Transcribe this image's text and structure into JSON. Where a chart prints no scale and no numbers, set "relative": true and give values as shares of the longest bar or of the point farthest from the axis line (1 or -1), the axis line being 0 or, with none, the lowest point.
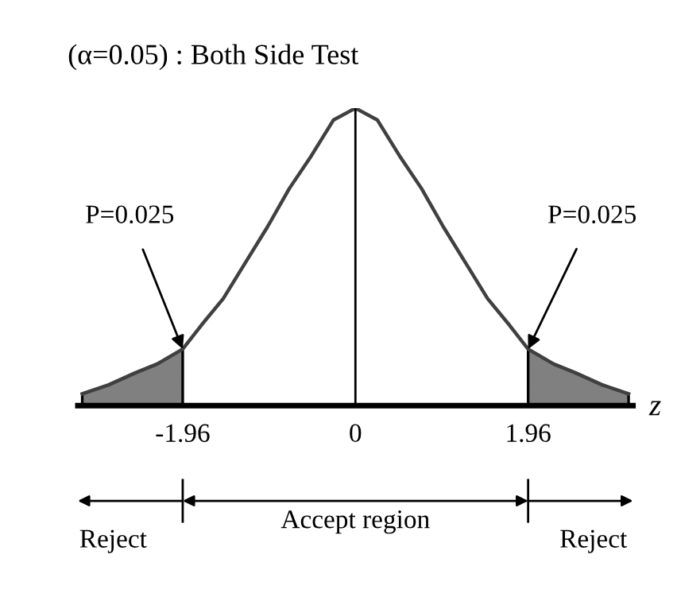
{
  "chart_data": {
    "type": "line",
    "relative": true,
    "title": "(α=0.05) : Both Side Test",
    "xlabel": "z",
    "xlim": [
      -3.15,
      3.15
    ],
    "xticks": [
      -1.96,
      0,
      1.96
    ],
    "grid": false,
    "marker": "none",
    "line_style": "solid",
    "tick_labels": "x",
    "series": [
      {
        "color": "#404040",
        "x": [
          -3.1,
          -2.8,
          -2.5,
          -2.25,
          -1.96,
          -1.75,
          -1.5,
          -1.25,
          -1.0,
          -0.75,
          -0.5,
          -0.25,
          0,
          0.25,
          0.5,
          0.75,
          1.0,
          1.25,
          1.5,
          1.75,
          1.96,
          2.25,
          2.5,
          2.8,
          3.1
        ],
        "values": [
          0.04,
          0.07,
          0.11,
          0.14,
          0.19,
          0.27,
          0.36,
          0.48,
          0.6,
          0.73,
          0.84,
          0.96,
          1.0,
          0.96,
          0.84,
          0.73,
          0.6,
          0.48,
          0.36,
          0.27,
          0.19,
          0.14,
          0.11,
          0.07,
          0.04
        ]
      },
      {
        "type": "area",
        "color": "#808080",
        "x": [
          -3.1,
          -2.8,
          -2.5,
          -2.25,
          -1.96
        ],
        "values": [
          0.04,
          0.07,
          0.11,
          0.14,
          0.19
        ]
      },
      {
        "type": "area",
        "color": "#808080",
        "x": [
          1.96,
          2.25,
          2.5,
          2.8,
          3.1
        ],
        "values": [
          0.19,
          0.14,
          0.11,
          0.07,
          0.04
        ]
      }
    ],
    "ref_lines": [
      {
        "axis": "x",
        "value": 0,
        "color": "#000000"
      }
    ],
    "annotations": [
      {
        "text": "P=0.025",
        "x": -1.96,
        "y": 0.19
      },
      {
        "text": "P=0.025",
        "x": 1.96,
        "y": 0.19
      },
      "Reject",
      "Accept region",
      "Reject"
    ]
  }
}
